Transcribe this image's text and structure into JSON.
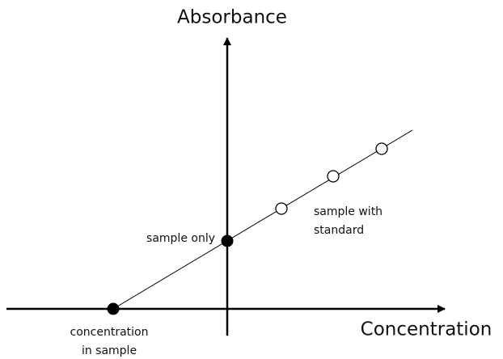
{
  "axes": {
    "y_label": "Absorbance",
    "x_label": "Concentration"
  },
  "annotations": {
    "sample_only": "sample only",
    "sample_with_standard": [
      "sample with",
      "standard"
    ],
    "concentration_in_sample": [
      "concentration",
      "in sample"
    ]
  }
}
